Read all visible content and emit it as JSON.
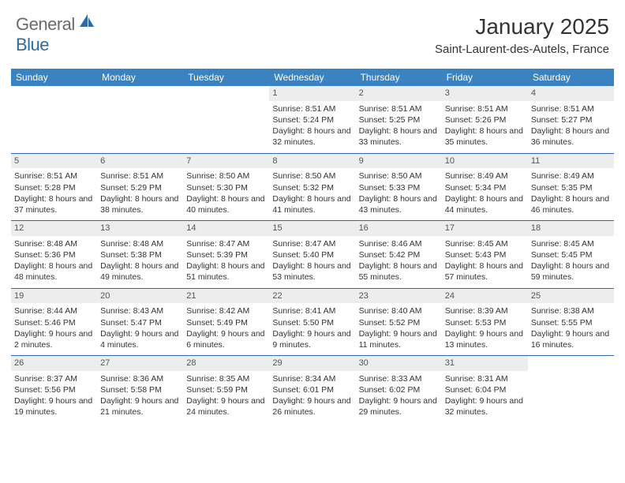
{
  "brand": {
    "general": "General",
    "blue": "Blue"
  },
  "title": "January 2025",
  "location": "Saint-Laurent-des-Autels, France",
  "colors": {
    "header_bar": "#3b83c0",
    "week_divider": "#2f6aa8",
    "daynum_bg": "#ededed",
    "text": "#333333",
    "logo_gray": "#6b6b6b",
    "logo_blue": "#2f6aa8"
  },
  "weekdays": [
    "Sunday",
    "Monday",
    "Tuesday",
    "Wednesday",
    "Thursday",
    "Friday",
    "Saturday"
  ],
  "weeks": [
    [
      {
        "day": "",
        "sunrise": "",
        "sunset": "",
        "daylight": ""
      },
      {
        "day": "",
        "sunrise": "",
        "sunset": "",
        "daylight": ""
      },
      {
        "day": "",
        "sunrise": "",
        "sunset": "",
        "daylight": ""
      },
      {
        "day": "1",
        "sunrise": "Sunrise: 8:51 AM",
        "sunset": "Sunset: 5:24 PM",
        "daylight": "Daylight: 8 hours and 32 minutes."
      },
      {
        "day": "2",
        "sunrise": "Sunrise: 8:51 AM",
        "sunset": "Sunset: 5:25 PM",
        "daylight": "Daylight: 8 hours and 33 minutes."
      },
      {
        "day": "3",
        "sunrise": "Sunrise: 8:51 AM",
        "sunset": "Sunset: 5:26 PM",
        "daylight": "Daylight: 8 hours and 35 minutes."
      },
      {
        "day": "4",
        "sunrise": "Sunrise: 8:51 AM",
        "sunset": "Sunset: 5:27 PM",
        "daylight": "Daylight: 8 hours and 36 minutes."
      }
    ],
    [
      {
        "day": "5",
        "sunrise": "Sunrise: 8:51 AM",
        "sunset": "Sunset: 5:28 PM",
        "daylight": "Daylight: 8 hours and 37 minutes."
      },
      {
        "day": "6",
        "sunrise": "Sunrise: 8:51 AM",
        "sunset": "Sunset: 5:29 PM",
        "daylight": "Daylight: 8 hours and 38 minutes."
      },
      {
        "day": "7",
        "sunrise": "Sunrise: 8:50 AM",
        "sunset": "Sunset: 5:30 PM",
        "daylight": "Daylight: 8 hours and 40 minutes."
      },
      {
        "day": "8",
        "sunrise": "Sunrise: 8:50 AM",
        "sunset": "Sunset: 5:32 PM",
        "daylight": "Daylight: 8 hours and 41 minutes."
      },
      {
        "day": "9",
        "sunrise": "Sunrise: 8:50 AM",
        "sunset": "Sunset: 5:33 PM",
        "daylight": "Daylight: 8 hours and 43 minutes."
      },
      {
        "day": "10",
        "sunrise": "Sunrise: 8:49 AM",
        "sunset": "Sunset: 5:34 PM",
        "daylight": "Daylight: 8 hours and 44 minutes."
      },
      {
        "day": "11",
        "sunrise": "Sunrise: 8:49 AM",
        "sunset": "Sunset: 5:35 PM",
        "daylight": "Daylight: 8 hours and 46 minutes."
      }
    ],
    [
      {
        "day": "12",
        "sunrise": "Sunrise: 8:48 AM",
        "sunset": "Sunset: 5:36 PM",
        "daylight": "Daylight: 8 hours and 48 minutes."
      },
      {
        "day": "13",
        "sunrise": "Sunrise: 8:48 AM",
        "sunset": "Sunset: 5:38 PM",
        "daylight": "Daylight: 8 hours and 49 minutes."
      },
      {
        "day": "14",
        "sunrise": "Sunrise: 8:47 AM",
        "sunset": "Sunset: 5:39 PM",
        "daylight": "Daylight: 8 hours and 51 minutes."
      },
      {
        "day": "15",
        "sunrise": "Sunrise: 8:47 AM",
        "sunset": "Sunset: 5:40 PM",
        "daylight": "Daylight: 8 hours and 53 minutes."
      },
      {
        "day": "16",
        "sunrise": "Sunrise: 8:46 AM",
        "sunset": "Sunset: 5:42 PM",
        "daylight": "Daylight: 8 hours and 55 minutes."
      },
      {
        "day": "17",
        "sunrise": "Sunrise: 8:45 AM",
        "sunset": "Sunset: 5:43 PM",
        "daylight": "Daylight: 8 hours and 57 minutes."
      },
      {
        "day": "18",
        "sunrise": "Sunrise: 8:45 AM",
        "sunset": "Sunset: 5:45 PM",
        "daylight": "Daylight: 8 hours and 59 minutes."
      }
    ],
    [
      {
        "day": "19",
        "sunrise": "Sunrise: 8:44 AM",
        "sunset": "Sunset: 5:46 PM",
        "daylight": "Daylight: 9 hours and 2 minutes."
      },
      {
        "day": "20",
        "sunrise": "Sunrise: 8:43 AM",
        "sunset": "Sunset: 5:47 PM",
        "daylight": "Daylight: 9 hours and 4 minutes."
      },
      {
        "day": "21",
        "sunrise": "Sunrise: 8:42 AM",
        "sunset": "Sunset: 5:49 PM",
        "daylight": "Daylight: 9 hours and 6 minutes."
      },
      {
        "day": "22",
        "sunrise": "Sunrise: 8:41 AM",
        "sunset": "Sunset: 5:50 PM",
        "daylight": "Daylight: 9 hours and 9 minutes."
      },
      {
        "day": "23",
        "sunrise": "Sunrise: 8:40 AM",
        "sunset": "Sunset: 5:52 PM",
        "daylight": "Daylight: 9 hours and 11 minutes."
      },
      {
        "day": "24",
        "sunrise": "Sunrise: 8:39 AM",
        "sunset": "Sunset: 5:53 PM",
        "daylight": "Daylight: 9 hours and 13 minutes."
      },
      {
        "day": "25",
        "sunrise": "Sunrise: 8:38 AM",
        "sunset": "Sunset: 5:55 PM",
        "daylight": "Daylight: 9 hours and 16 minutes."
      }
    ],
    [
      {
        "day": "26",
        "sunrise": "Sunrise: 8:37 AM",
        "sunset": "Sunset: 5:56 PM",
        "daylight": "Daylight: 9 hours and 19 minutes."
      },
      {
        "day": "27",
        "sunrise": "Sunrise: 8:36 AM",
        "sunset": "Sunset: 5:58 PM",
        "daylight": "Daylight: 9 hours and 21 minutes."
      },
      {
        "day": "28",
        "sunrise": "Sunrise: 8:35 AM",
        "sunset": "Sunset: 5:59 PM",
        "daylight": "Daylight: 9 hours and 24 minutes."
      },
      {
        "day": "29",
        "sunrise": "Sunrise: 8:34 AM",
        "sunset": "Sunset: 6:01 PM",
        "daylight": "Daylight: 9 hours and 26 minutes."
      },
      {
        "day": "30",
        "sunrise": "Sunrise: 8:33 AM",
        "sunset": "Sunset: 6:02 PM",
        "daylight": "Daylight: 9 hours and 29 minutes."
      },
      {
        "day": "31",
        "sunrise": "Sunrise: 8:31 AM",
        "sunset": "Sunset: 6:04 PM",
        "daylight": "Daylight: 9 hours and 32 minutes."
      },
      {
        "day": "",
        "sunrise": "",
        "sunset": "",
        "daylight": ""
      }
    ]
  ]
}
